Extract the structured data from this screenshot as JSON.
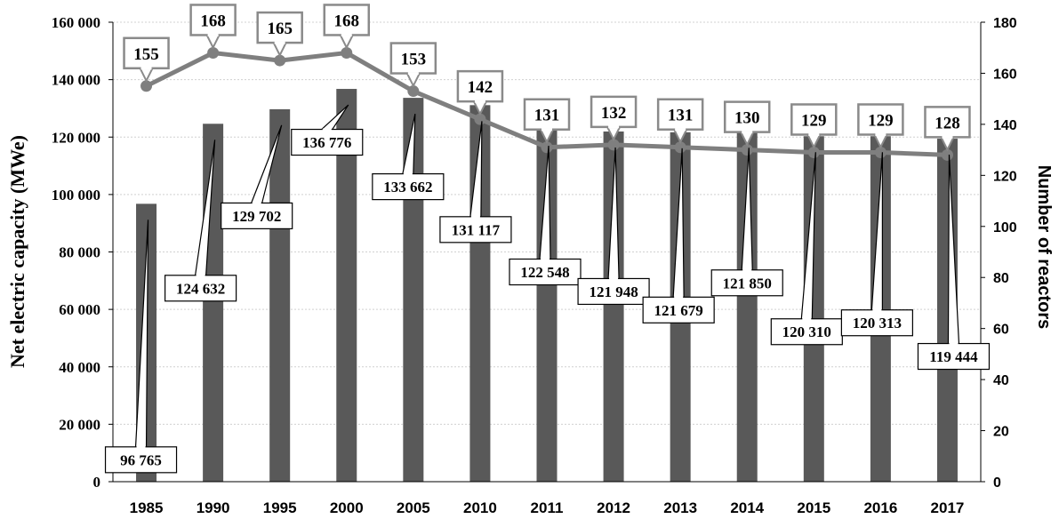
{
  "chart_data": {
    "type": "bar",
    "categories": [
      "1985",
      "1990",
      "1995",
      "2000",
      "2005",
      "2010",
      "2011",
      "2012",
      "2013",
      "2014",
      "2015",
      "2016",
      "2017"
    ],
    "series": [
      {
        "axis": "left",
        "type": "bar",
        "values": [
          96765,
          124632,
          129702,
          136776,
          133662,
          131117,
          122548,
          121948,
          121679,
          121850,
          120310,
          120313,
          119444
        ],
        "data_labels": [
          "96 765",
          "124 632",
          "129 702",
          "136 776",
          "133 662",
          "131 117",
          "122 548",
          "121 948",
          "121 679",
          "121 850",
          "120 310",
          "120 313",
          "119 444"
        ],
        "color": "#595959"
      },
      {
        "axis": "right",
        "type": "line",
        "values": [
          155,
          168,
          165,
          168,
          153,
          142,
          131,
          132,
          131,
          130,
          129,
          129,
          128
        ],
        "data_labels": [
          "155",
          "168",
          "165",
          "168",
          "153",
          "142",
          "131",
          "132",
          "131",
          "130",
          "129",
          "129",
          "128"
        ],
        "color": "#7f7f7f"
      }
    ],
    "ylabel": "Net electric capacity (MWe)",
    "y2label": "Number of reactors",
    "ylim": [
      0,
      160000
    ],
    "y2lim": [
      0,
      180
    ],
    "yticks": [
      "0",
      "20 000",
      "40 000",
      "60 000",
      "80 000",
      "100 000",
      "120 000",
      "140 000",
      "160 000"
    ],
    "y2ticks": [
      "0",
      "20",
      "40",
      "60",
      "80",
      "100",
      "120",
      "140",
      "160",
      "180"
    ],
    "grid": true,
    "legend": "none"
  }
}
